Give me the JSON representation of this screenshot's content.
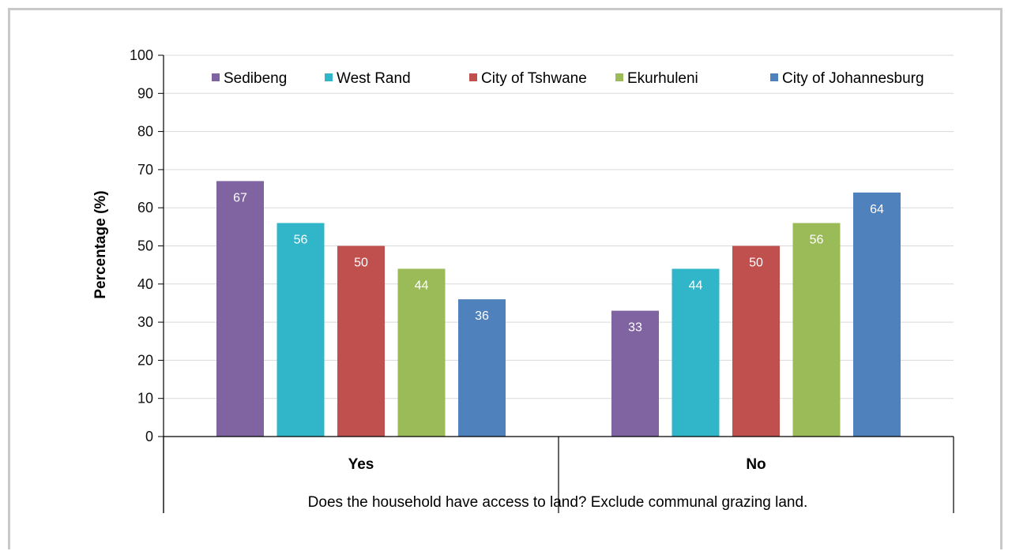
{
  "chart_data": {
    "type": "bar",
    "categories": [
      "Yes",
      "No"
    ],
    "series": [
      {
        "name": "Sedibeng",
        "color": "#8064A2",
        "values": [
          67,
          33
        ]
      },
      {
        "name": "West Rand",
        "color": "#31B6C9",
        "values": [
          56,
          44
        ]
      },
      {
        "name": "City of Tshwane",
        "color": "#C0504D",
        "values": [
          50,
          50
        ]
      },
      {
        "name": "Ekurhuleni",
        "color": "#9BBB59",
        "values": [
          44,
          56
        ]
      },
      {
        "name": "City of Johannesburg",
        "color": "#4F81BD",
        "values": [
          36,
          64
        ]
      }
    ],
    "xlabel": "Does the household have access to land? Exclude communal grazing land.",
    "ylabel": "Percentage (%)",
    "ylim": [
      0,
      100
    ],
    "yticks": [
      0,
      10,
      20,
      30,
      40,
      50,
      60,
      70,
      80,
      90,
      100
    ],
    "grid": true,
    "legend_position": "top"
  }
}
